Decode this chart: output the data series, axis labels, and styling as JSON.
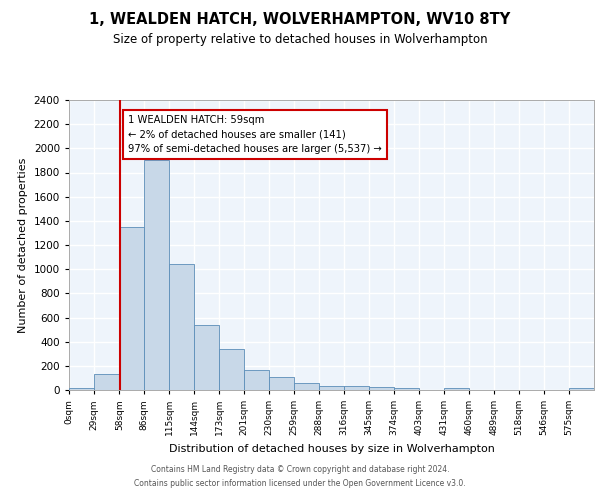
{
  "title": "1, WEALDEN HATCH, WOLVERHAMPTON, WV10 8TY",
  "subtitle": "Size of property relative to detached houses in Wolverhampton",
  "xlabel": "Distribution of detached houses by size in Wolverhampton",
  "ylabel": "Number of detached properties",
  "bin_labels": [
    "0sqm",
    "29sqm",
    "58sqm",
    "86sqm",
    "115sqm",
    "144sqm",
    "173sqm",
    "201sqm",
    "230sqm",
    "259sqm",
    "288sqm",
    "316sqm",
    "345sqm",
    "374sqm",
    "403sqm",
    "431sqm",
    "460sqm",
    "489sqm",
    "518sqm",
    "546sqm",
    "575sqm"
  ],
  "bin_edges": [
    0,
    29,
    58,
    86,
    115,
    144,
    173,
    201,
    230,
    259,
    288,
    316,
    345,
    374,
    403,
    431,
    460,
    489,
    518,
    546,
    575,
    604
  ],
  "bar_heights": [
    20,
    130,
    1350,
    1900,
    1040,
    540,
    340,
    165,
    110,
    55,
    35,
    35,
    25,
    15,
    0,
    15,
    0,
    0,
    0,
    0,
    20
  ],
  "bar_color": "#c8d8e8",
  "bar_edgecolor": "#5b8db8",
  "background_color": "#eef4fb",
  "grid_color": "#ffffff",
  "property_line_x": 59,
  "property_line_color": "#cc0000",
  "annotation_text": "1 WEALDEN HATCH: 59sqm\n← 2% of detached houses are smaller (141)\n97% of semi-detached houses are larger (5,537) →",
  "annotation_box_color": "#ffffff",
  "annotation_box_edgecolor": "#cc0000",
  "ylim": [
    0,
    2400
  ],
  "yticks": [
    0,
    200,
    400,
    600,
    800,
    1000,
    1200,
    1400,
    1600,
    1800,
    2000,
    2200,
    2400
  ],
  "footer_line1": "Contains HM Land Registry data © Crown copyright and database right 2024.",
  "footer_line2": "Contains public sector information licensed under the Open Government Licence v3.0."
}
